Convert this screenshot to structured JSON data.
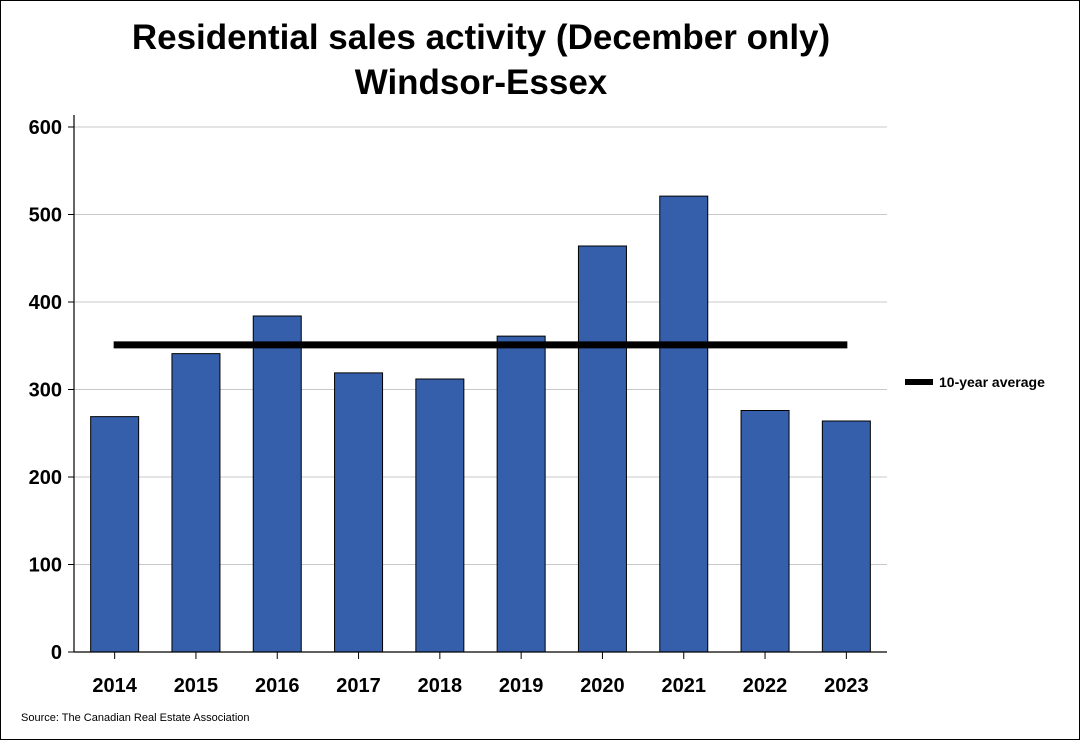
{
  "chart_data": {
    "type": "bar",
    "title": "Residential sales activity (December only)",
    "subtitle": "Windsor-Essex",
    "categories": [
      "2014",
      "2015",
      "2016",
      "2017",
      "2018",
      "2019",
      "2020",
      "2021",
      "2022",
      "2023"
    ],
    "values": [
      269,
      341,
      384,
      319,
      312,
      361,
      464,
      521,
      276,
      264
    ],
    "ylim": [
      0,
      600
    ],
    "yticks": [
      0,
      100,
      200,
      300,
      400,
      500,
      600
    ],
    "average": {
      "name": "10-year average",
      "value": 351
    },
    "bar_color": "#355fab",
    "average_color": "#000000",
    "grid": true,
    "legend_position": "right",
    "source": "Source: The Canadian Real Estate Association"
  }
}
